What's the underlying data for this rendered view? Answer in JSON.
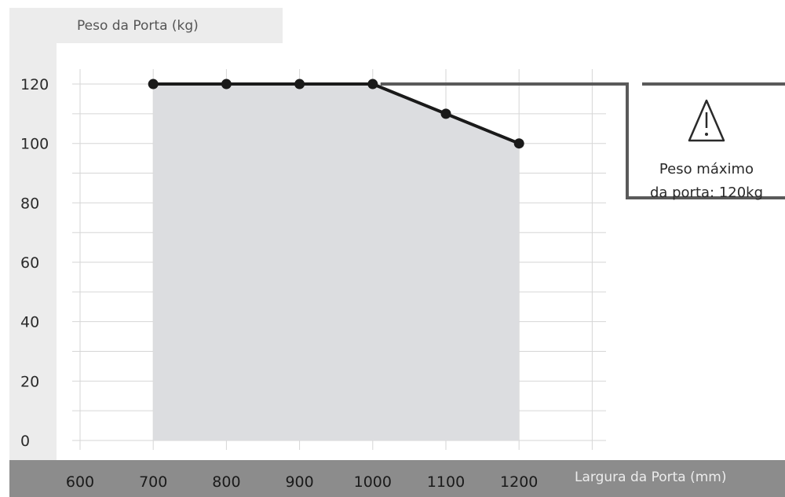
{
  "chart_data": {
    "type": "area",
    "ylabel": "Peso da Porta (kg)",
    "xlabel": "Largura da Porta (mm)",
    "x_ticks": [
      600,
      700,
      800,
      900,
      1000,
      1100,
      1200
    ],
    "y_ticks": [
      0,
      20,
      40,
      60,
      80,
      100,
      120
    ],
    "xlim": [
      600,
      1300
    ],
    "ylim": [
      0,
      120
    ],
    "grid": true,
    "series": [
      {
        "x": [
          700,
          800,
          900,
          1000,
          1100,
          1200
        ],
        "y": [
          120,
          120,
          120,
          120,
          110,
          100
        ]
      }
    ],
    "annotation": {
      "text_line1": "Peso máximo",
      "text_line2": "da porta: 120kg",
      "icon": "warning-triangle-icon",
      "value": 120
    },
    "colors": {
      "area_fill": "#dcdde0",
      "line": "#1a1a1a",
      "grid": "#d6d6d6",
      "x_axis_band": "#8c8c8c",
      "y_label_band": "#ececec",
      "annotation_stroke": "#5a5a5a"
    }
  }
}
